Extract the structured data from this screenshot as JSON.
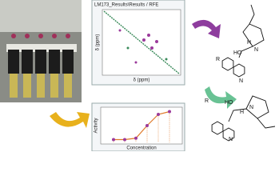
{
  "nmr_window": {
    "title": "LM173_Results\\Results / RFE",
    "x_label": "δ (ppm)",
    "y_label": "δ (ppm)"
  },
  "activity_plot": {
    "type": "line",
    "x_label": "Concentration",
    "y_label": "Activity",
    "x": [
      0.1,
      0.2,
      0.3,
      0.4,
      0.5,
      0.6
    ],
    "y": [
      0,
      0,
      0.05,
      0.5,
      0.9,
      1
    ],
    "xlim": [
      0,
      0.7
    ],
    "ylim": [
      -0.1,
      1.1
    ],
    "point_color": "#9b3a9b",
    "line_color": "#e07a2a"
  },
  "molecules": [
    {
      "substituent": "R",
      "hydroxyl": "HO",
      "amine": "N",
      "hydrogen": "H",
      "ring_n": "N"
    },
    {
      "substituent": "R",
      "hydroxyl": "HO",
      "amine": "N",
      "hydrogen": "H",
      "ring_n": "N"
    }
  ]
}
